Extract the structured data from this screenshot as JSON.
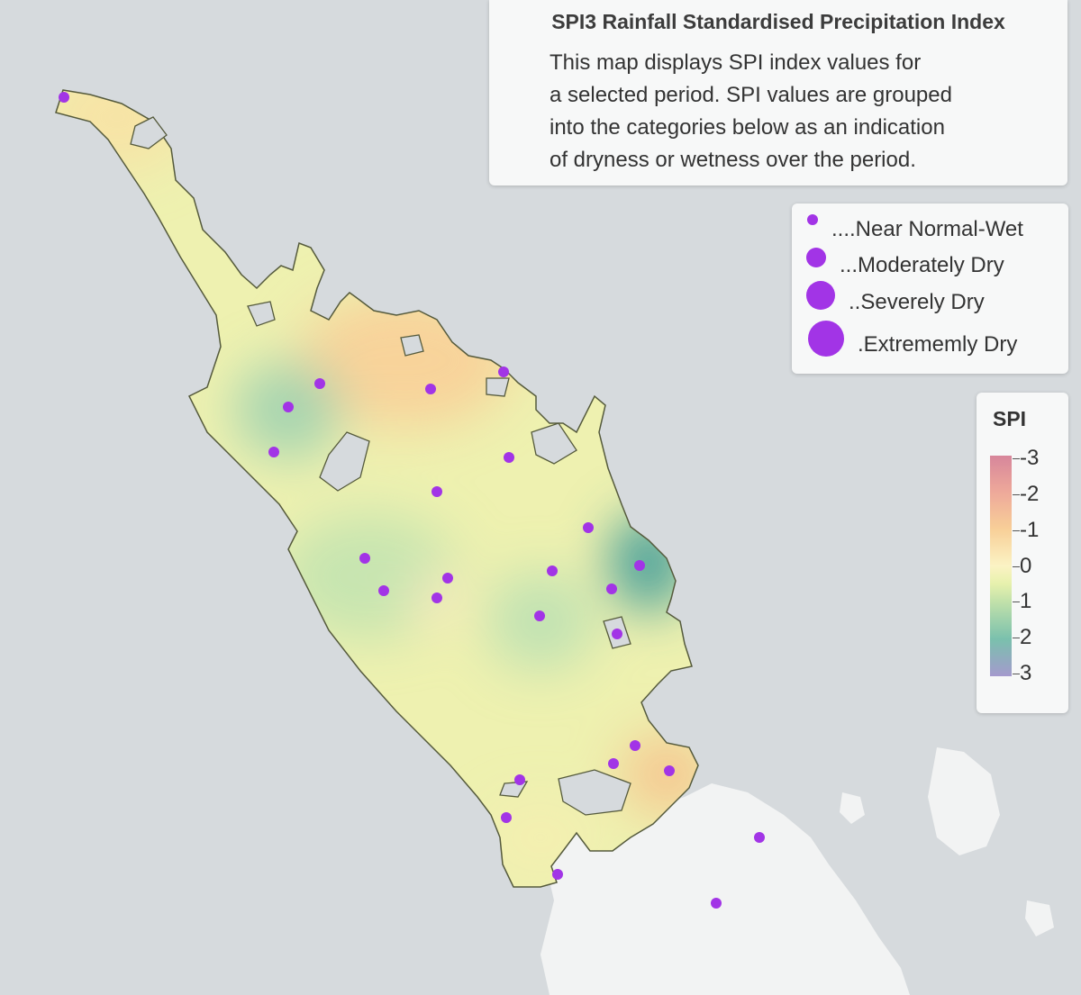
{
  "info": {
    "title": "SPI3 Rainfall Standardised Precipitation Index",
    "lines": [
      "This map displays SPI index values for",
      "a selected period. SPI values are grouped",
      "into the categories below as an indication",
      "of dryness or wetness over the period."
    ]
  },
  "size_legend": [
    {
      "label": "....Near Normal-Wet",
      "icon": "small-circle-icon"
    },
    {
      "label": "...Moderately Dry",
      "icon": "medium-circle-icon"
    },
    {
      "label": "..Severely Dry",
      "icon": "large-circle-icon"
    },
    {
      "label": ".Extrememly Dry",
      "icon": "xlarge-circle-icon"
    }
  ],
  "spi_legend": {
    "title": "SPI",
    "ticks": [
      "-3",
      "-2",
      "-1",
      "0",
      "1",
      "2",
      "3"
    ]
  },
  "colors": {
    "dot": "#a234e6",
    "land": "#eef1b0",
    "background": "#d6dadd"
  }
}
